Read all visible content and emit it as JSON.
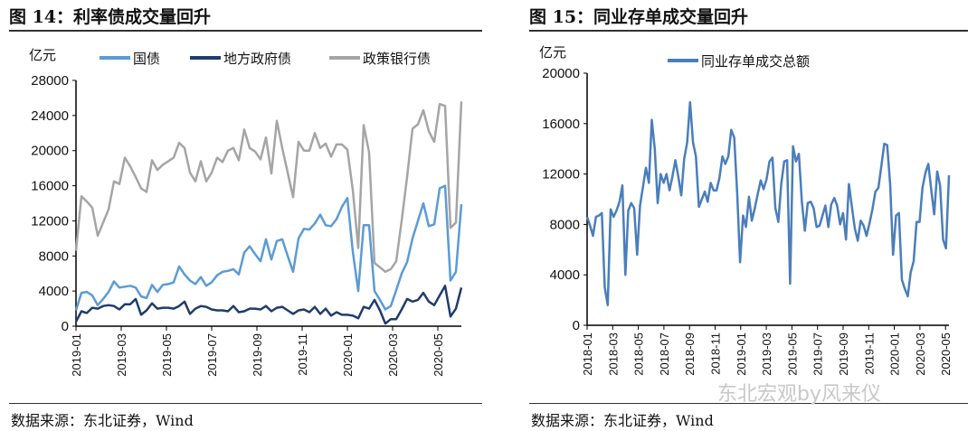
{
  "figures": [
    {
      "title": "图 14：利率债成交量回升",
      "source": "数据来源：东北证券，Wind"
    },
    {
      "title": "图 15：同业存单成交量回升",
      "source": "数据来源：东北证券，Wind"
    }
  ],
  "watermark": "东北宏观by风来仪",
  "chart_data": [
    {
      "type": "line",
      "ylabel": "亿元",
      "ylim": [
        0,
        28000
      ],
      "yticks": [
        "0",
        "4000",
        "8000",
        "12000",
        "16000",
        "20000",
        "24000",
        "28000"
      ],
      "xticks": [
        "2019-01",
        "2019-03",
        "2019-05",
        "2019-07",
        "2019-09",
        "2019-11",
        "2020-01",
        "2020-03",
        "2020-05"
      ],
      "legend_position": "top",
      "series": [
        {
          "name": "国债",
          "color": "#5b9bd5",
          "values": [
            1800,
            3800,
            3900,
            3500,
            2400,
            3100,
            3900,
            5100,
            4400,
            4500,
            4600,
            4400,
            3400,
            3200,
            4700,
            3900,
            4700,
            4800,
            5000,
            6800,
            5900,
            5200,
            4800,
            5600,
            4600,
            5000,
            5800,
            6200,
            6300,
            6500,
            5900,
            8400,
            9100,
            8200,
            7400,
            9900,
            7600,
            9700,
            9900,
            8000,
            6200,
            10000,
            11100,
            11000,
            11700,
            12700,
            11500,
            11400,
            12200,
            13600,
            14600,
            8500,
            4000,
            11500,
            11500,
            4000,
            3000,
            1900,
            2300,
            4100,
            6000,
            7300,
            10000,
            12000,
            14000,
            11400,
            11600,
            15700,
            16000,
            5200,
            6200,
            13900
          ]
        },
        {
          "name": "地方政府债",
          "color": "#1f3c6b",
          "values": [
            500,
            1700,
            1500,
            2100,
            2000,
            2300,
            2400,
            2300,
            1900,
            2500,
            2500,
            3100,
            1300,
            1800,
            2600,
            2000,
            2100,
            2100,
            2000,
            2300,
            2800,
            1400,
            2000,
            2300,
            2200,
            1900,
            1800,
            1800,
            1700,
            2300,
            1600,
            1700,
            2000,
            2000,
            1900,
            2300,
            1700,
            2100,
            2200,
            1800,
            1400,
            1800,
            1900,
            1600,
            2200,
            1400,
            2000,
            1200,
            1600,
            1300,
            1300,
            1200,
            900,
            2200,
            2000,
            3000,
            1800,
            300,
            800,
            800,
            1900,
            3100,
            2800,
            3000,
            3800,
            2800,
            2400,
            3500,
            4600,
            1100,
            2000,
            4400
          ]
        },
        {
          "name": "政策银行债",
          "color": "#a5a5a5",
          "values": [
            8600,
            14800,
            14200,
            13500,
            10300,
            11800,
            13300,
            16500,
            16200,
            19200,
            18200,
            17000,
            15700,
            15300,
            18900,
            17800,
            18400,
            18800,
            19200,
            20900,
            20300,
            17500,
            16500,
            18800,
            16500,
            17500,
            19200,
            18700,
            20000,
            20300,
            18900,
            22400,
            20300,
            19900,
            19000,
            21500,
            17400,
            23400,
            20300,
            17500,
            14700,
            21000,
            20000,
            20000,
            22000,
            20300,
            20800,
            19300,
            20700,
            20700,
            20100,
            15500,
            8900,
            22900,
            19800,
            7200,
            6700,
            6200,
            6500,
            7400,
            12000,
            17000,
            22500,
            23000,
            24600,
            22200,
            21000,
            25300,
            25100,
            11200,
            11800,
            25600
          ]
        }
      ]
    },
    {
      "type": "line",
      "ylabel": "亿元",
      "ylim": [
        0,
        20000
      ],
      "yticks": [
        "0",
        "4000",
        "8000",
        "12000",
        "16000",
        "20000"
      ],
      "xticks": [
        "2018-01",
        "2018-03",
        "2018-05",
        "2018-07",
        "2018-09",
        "2018-11",
        "2019-01",
        "2019-03",
        "2019-05",
        "2019-07",
        "2019-09",
        "2019-11",
        "2020-01",
        "2020-03",
        "2020-05"
      ],
      "legend_position": "top",
      "series": [
        {
          "name": "同业存单成交总额",
          "color": "#4a7ebb",
          "values": [
            8600,
            7900,
            7100,
            8600,
            8700,
            8900,
            3000,
            1600,
            9200,
            8600,
            9100,
            9800,
            11100,
            4000,
            9100,
            9700,
            9300,
            5600,
            9500,
            11000,
            12500,
            11300,
            16300,
            14000,
            9700,
            12000,
            11300,
            12000,
            10700,
            11800,
            13100,
            11800,
            10300,
            13200,
            14500,
            17700,
            14500,
            13400,
            9400,
            10000,
            10600,
            9800,
            11300,
            10700,
            10700,
            11700,
            13400,
            12800,
            13400,
            15500,
            14900,
            10500,
            5000,
            8700,
            7800,
            10200,
            8300,
            9300,
            10400,
            11500,
            10800,
            11600,
            13000,
            13300,
            9300,
            8200,
            11200,
            13000,
            13100,
            3300,
            14200,
            13000,
            13600,
            9800,
            7500,
            9700,
            9800,
            9300,
            7800,
            7900,
            8700,
            9500,
            7800,
            9600,
            10100,
            9500,
            8000,
            8900,
            6800,
            11200,
            9400,
            7700,
            6700,
            8300,
            7900,
            7100,
            8100,
            9200,
            10600,
            10900,
            12600,
            14400,
            14300,
            11200,
            5600,
            8700,
            8900,
            3600,
            2900,
            2300,
            4200,
            5100,
            8200,
            8200,
            10900,
            12100,
            12800,
            10700,
            8800,
            12200,
            11100,
            6800,
            6100,
            11900
          ]
        }
      ]
    }
  ]
}
